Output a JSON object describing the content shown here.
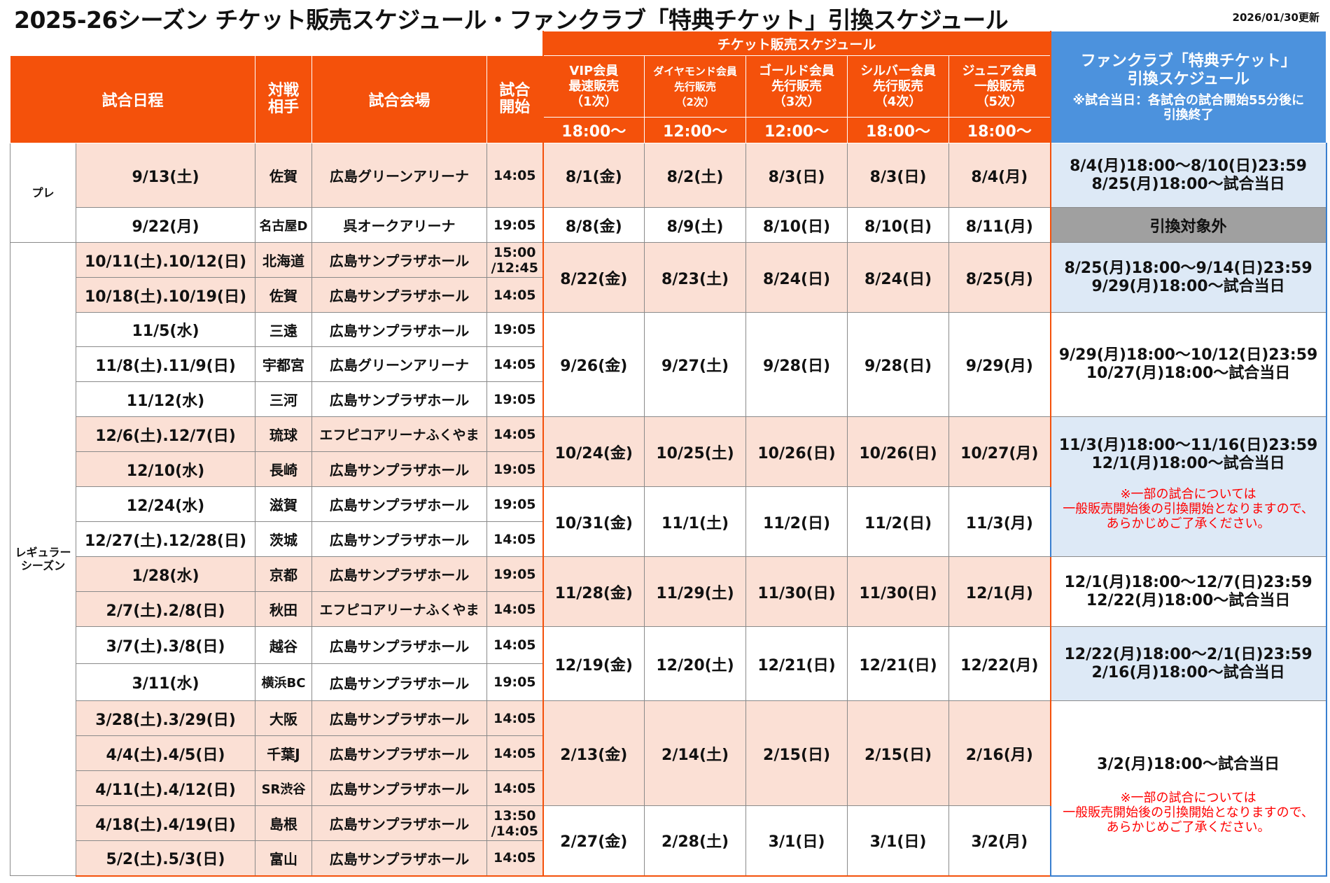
{
  "page": {
    "title": "2025-26シーズン チケット販売スケジュール・ファンクラブ「特典チケット」引換スケジュール",
    "updated": "2026/01/30更新"
  },
  "header": {
    "sale_band": "チケット販売スケジュール",
    "date_col": "試合日程",
    "opp_col": "対戦\n相手",
    "venue_col": "試合会場",
    "start_col": "試合\n開始",
    "tiers": [
      {
        "label": "VIP会員\n最速販売\n（1次）",
        "time": "18:00～"
      },
      {
        "label": "ダイヤモンド会員\n先行販売\n（2次）",
        "time": "12:00～"
      },
      {
        "label": "ゴールド会員\n先行販売\n（3次）",
        "time": "12:00～"
      },
      {
        "label": "シルバー会員\n先行販売\n（4次）",
        "time": "18:00～"
      },
      {
        "label": "ジュニア会員\n一般販売\n（5次）",
        "time": "18:00～"
      }
    ],
    "fc_title": "ファンクラブ「特典チケット」\n引換スケジュール",
    "fc_note": "※試合当日：各試合の試合開始55分後に\n引換終了"
  },
  "categories": {
    "pre": "プレ",
    "regular": "レギュラー\nシーズン"
  },
  "games": [
    {
      "date": "9/13(土)",
      "opp": "佐賀",
      "venue": "広島グリーンアリーナ",
      "start": "14:05"
    },
    {
      "date": "9/22(月)",
      "opp": "名古屋D",
      "venue": "呉オークアリーナ",
      "start": "19:05"
    },
    {
      "date": "10/11(土).10/12(日)",
      "opp": "北海道",
      "venue": "広島サンプラザホール",
      "start": "15:00\n/12:45"
    },
    {
      "date": "10/18(土).10/19(日)",
      "opp": "佐賀",
      "venue": "広島サンプラザホール",
      "start": "14:05"
    },
    {
      "date": "11/5(水)",
      "opp": "三遠",
      "venue": "広島サンプラザホール",
      "start": "19:05"
    },
    {
      "date": "11/8(土).11/9(日)",
      "opp": "宇都宮",
      "venue": "広島グリーンアリーナ",
      "start": "14:05"
    },
    {
      "date": "11/12(水)",
      "opp": "三河",
      "venue": "広島サンプラザホール",
      "start": "19:05"
    },
    {
      "date": "12/6(土).12/7(日)",
      "opp": "琉球",
      "venue": "エフピコアリーナふくやま",
      "start": "14:05"
    },
    {
      "date": "12/10(水)",
      "opp": "長崎",
      "venue": "広島サンプラザホール",
      "start": "19:05"
    },
    {
      "date": "12/24(水)",
      "opp": "滋賀",
      "venue": "広島サンプラザホール",
      "start": "19:05"
    },
    {
      "date": "12/27(土).12/28(日)",
      "opp": "茨城",
      "venue": "広島サンプラザホール",
      "start": "14:05"
    },
    {
      "date": "1/28(水)",
      "opp": "京都",
      "venue": "広島サンプラザホール",
      "start": "19:05"
    },
    {
      "date": "2/7(土).2/8(日)",
      "opp": "秋田",
      "venue": "エフピコアリーナふくやま",
      "start": "14:05"
    },
    {
      "date": "3/7(土).3/8(日)",
      "opp": "越谷",
      "venue": "広島サンプラザホール",
      "start": "14:05"
    },
    {
      "date": "3/11(水)",
      "opp": "横浜BC",
      "venue": "広島サンプラザホール",
      "start": "19:05"
    },
    {
      "date": "3/28(土).3/29(日)",
      "opp": "大阪",
      "venue": "広島サンプラザホール",
      "start": "14:05"
    },
    {
      "date": "4/4(土).4/5(日)",
      "opp": "千葉J",
      "venue": "広島サンプラザホール",
      "start": "14:05"
    },
    {
      "date": "4/11(土).4/12(日)",
      "opp": "SR渋谷",
      "venue": "広島サンプラザホール",
      "start": "14:05"
    },
    {
      "date": "4/18(土).4/19(日)",
      "opp": "島根",
      "venue": "広島サンプラザホール",
      "start": "13:50\n/14:05"
    },
    {
      "date": "5/2(土).5/3(日)",
      "opp": "富山",
      "venue": "広島サンプラザホール",
      "start": "14:05"
    }
  ],
  "sales": [
    [
      "8/1(金)",
      "8/2(土)",
      "8/3(日)",
      "8/3(日)",
      "8/4(月)"
    ],
    [
      "8/8(金)",
      "8/9(土)",
      "8/10(日)",
      "8/10(日)",
      "8/11(月)"
    ],
    [
      "8/22(金)",
      "8/23(土)",
      "8/24(日)",
      "8/24(日)",
      "8/25(月)"
    ],
    [
      "9/26(金)",
      "9/27(土)",
      "9/28(日)",
      "9/28(日)",
      "9/29(月)"
    ],
    [
      "10/24(金)",
      "10/25(土)",
      "10/26(日)",
      "10/26(日)",
      "10/27(月)"
    ],
    [
      "10/31(金)",
      "11/1(土)",
      "11/2(日)",
      "11/2(日)",
      "11/3(月)"
    ],
    [
      "11/28(金)",
      "11/29(土)",
      "11/30(日)",
      "11/30(日)",
      "12/1(月)"
    ],
    [
      "12/19(金)",
      "12/20(土)",
      "12/21(日)",
      "12/21(日)",
      "12/22(月)"
    ],
    [
      "2/13(金)",
      "2/14(土)",
      "2/15(日)",
      "2/15(日)",
      "2/16(月)"
    ],
    [
      "2/27(金)",
      "2/28(土)",
      "3/1(日)",
      "3/1(日)",
      "3/2(月)"
    ]
  ],
  "fanclub": [
    "8/4(月)18:00～8/10(日)23:59\n8/25(月)18:00～試合当日",
    "引換対象外",
    "8/25(月)18:00～9/14(日)23:59\n9/29(月)18:00～試合当日",
    "9/29(月)18:00～10/12(日)23:59\n10/27(月)18:00～試合当日",
    "11/3(月)18:00～11/16(日)23:59\n12/1(月)18:00～試合当日",
    "12/1(月)18:00～12/7(日)23:59\n12/22(月)18:00～試合当日",
    "12/22(月)18:00～2/1(日)23:59\n2/16(月)18:00～試合当日",
    "3/2(月)18:00～試合当日"
  ],
  "fanclub_red_note": "※一部の試合については\n一般販売開始後の引換開始となりますので、\nあらかじめご了承ください。",
  "colors": {
    "orange": "#f4510b",
    "blue": "#4c92dd",
    "pink": "#fbe0d5",
    "lightblue": "#dde9f6",
    "gray": "#a0a0a0",
    "red": "#ff0000"
  }
}
